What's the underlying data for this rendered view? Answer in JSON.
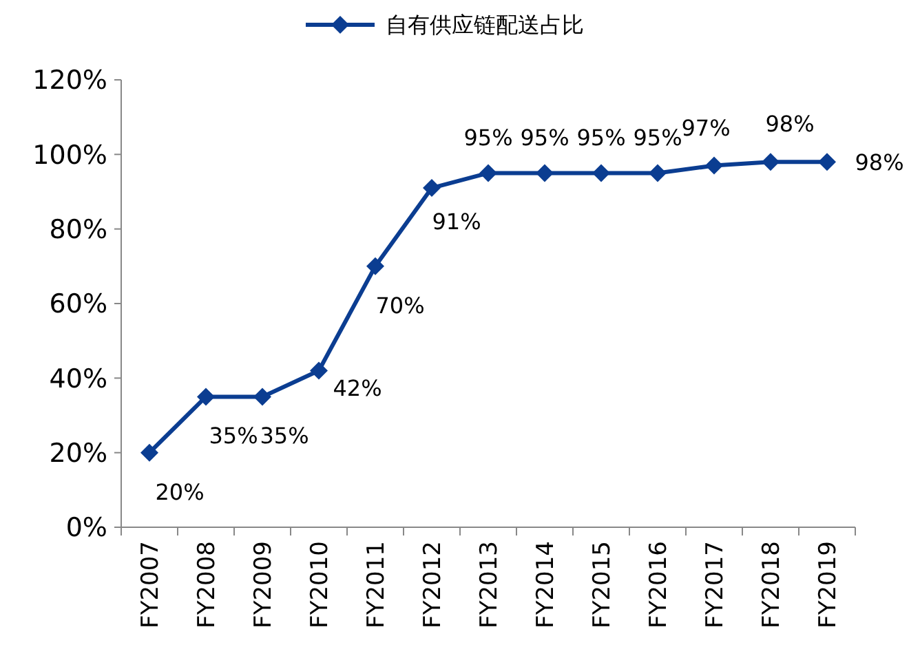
{
  "chart_data": {
    "type": "line",
    "categories": [
      "FY2007",
      "FY2008",
      "FY2009",
      "FY2010",
      "FY2011",
      "FY2012",
      "FY2013",
      "FY2014",
      "FY2015",
      "FY2016",
      "FY2017",
      "FY2018",
      "FY2019"
    ],
    "series": [
      {
        "name": "自有供应链配送占比",
        "color": "#0b3d91",
        "values": [
          20,
          35,
          35,
          42,
          70,
          91,
          95,
          95,
          95,
          95,
          97,
          98,
          98
        ]
      }
    ],
    "value_labels": [
      "20%",
      "35%",
      "35%",
      "42%",
      "70%",
      "91%",
      "95%",
      "95%",
      "95%",
      "95%",
      "97%",
      "98%",
      "98%"
    ],
    "ylim": [
      0,
      120
    ],
    "yticks": [
      {
        "value": 0,
        "label": "0%"
      },
      {
        "value": 20,
        "label": "20%"
      },
      {
        "value": 40,
        "label": "40%"
      },
      {
        "value": 60,
        "label": "60%"
      },
      {
        "value": 80,
        "label": "80%"
      },
      {
        "value": 100,
        "label": "100%"
      },
      {
        "value": 120,
        "label": "120%"
      }
    ],
    "grid": false,
    "legend": "top",
    "marker": "diamond",
    "line_style": "solid"
  }
}
